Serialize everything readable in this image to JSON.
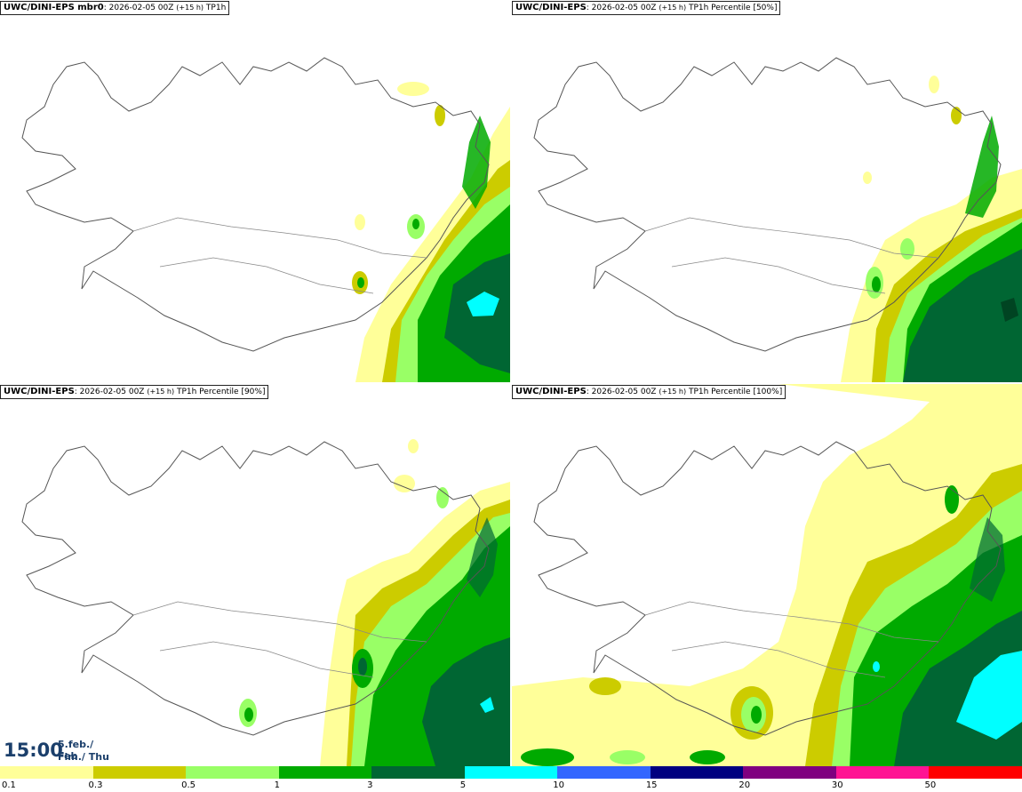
{
  "panels": [
    {
      "model": "UWC/DINI-EPS mbr0",
      "sep": ": ",
      "run": "2026-02-05 00Z",
      "lead": "(+15 h)",
      "field": "TP1h"
    },
    {
      "model": "UWC/DINI-EPS",
      "sep": ": ",
      "run": "2026-02-05 00Z",
      "lead": "(+15 h)",
      "field": "TP1h Percentile [50%]"
    },
    {
      "model": "UWC/DINI-EPS",
      "sep": ": ",
      "run": "2026-02-05 00Z",
      "lead": "(+15 h)",
      "field": "TP1h Percentile [90%]"
    },
    {
      "model": "UWC/DINI-EPS",
      "sep": ": ",
      "run": "2026-02-05 00Z",
      "lead": "(+15 h)",
      "field": "TP1h Percentile [100%]"
    }
  ],
  "valid_time": {
    "time": "15:00",
    "date_is": "5.feb./ Feb",
    "weekday": "Fim./ Thu"
  },
  "legend": {
    "thresholds": [
      "0.1",
      "0.3",
      "0.5",
      "1",
      "3",
      "5",
      "10",
      "15",
      "20",
      "30",
      "50"
    ],
    "colors": [
      "#ffff99",
      "#cccc00",
      "#99ff66",
      "#00aa00",
      "#006633",
      "#00ffff",
      "#3366ff",
      "#000080",
      "#800080",
      "#ff1493",
      "#ff0000"
    ]
  }
}
